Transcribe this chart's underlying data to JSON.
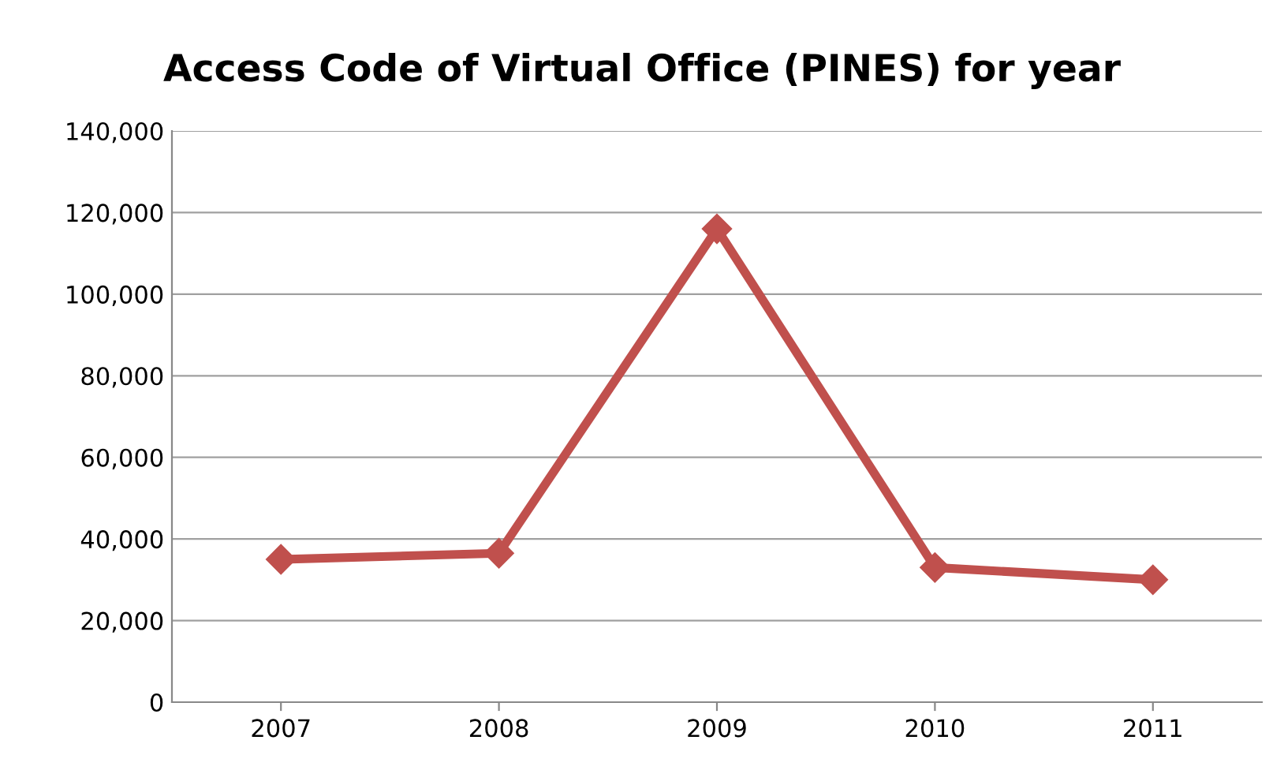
{
  "chart_data": {
    "type": "line",
    "title": "Access Code of Virtual Office (PINES) for year",
    "categories": [
      "2007",
      "2008",
      "2009",
      "2010",
      "2011"
    ],
    "series": [
      {
        "color": "#c0504d",
        "values": [
          35000,
          36500,
          116000,
          33000,
          30000
        ]
      }
    ],
    "ylim": [
      0,
      140000
    ],
    "yticks": [
      {
        "value": 0,
        "label": "0"
      },
      {
        "value": 20000,
        "label": "20,000"
      },
      {
        "value": 40000,
        "label": "40,000"
      },
      {
        "value": 60000,
        "label": "60,000"
      },
      {
        "value": 80000,
        "label": "80,000"
      },
      {
        "value": 100000,
        "label": "100,000"
      },
      {
        "value": 120000,
        "label": "120,000"
      },
      {
        "value": 140000,
        "label": "140,000"
      }
    ],
    "grid": "y",
    "marker": "diamond",
    "line_style": "solid",
    "legend": false
  }
}
